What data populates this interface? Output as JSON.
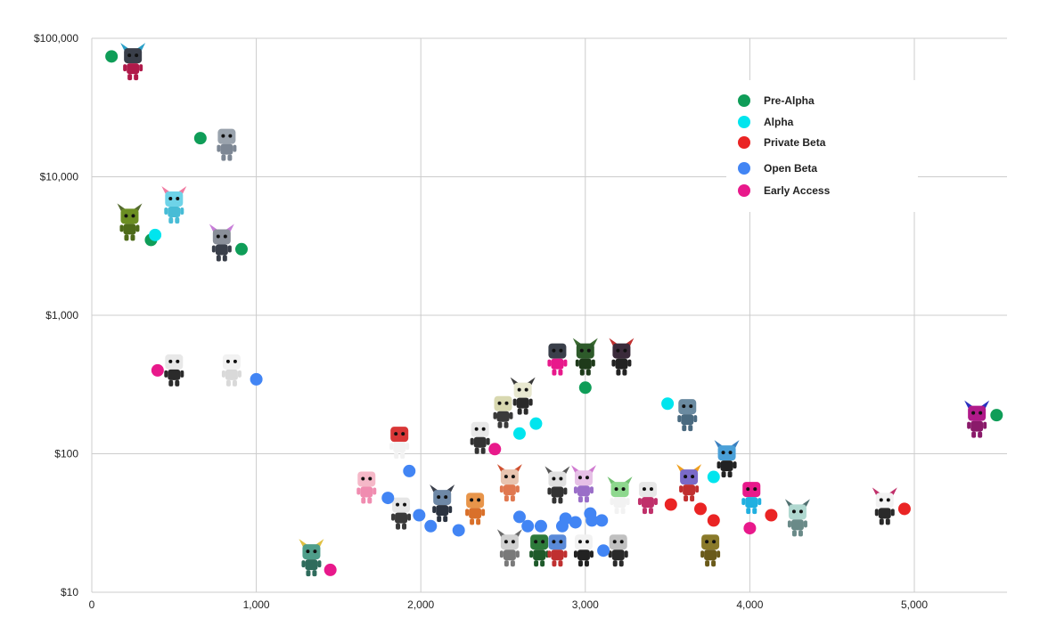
{
  "chart_data": {
    "type": "scatter",
    "title": "",
    "xlabel": "",
    "ylabel": "",
    "xlim": [
      0,
      5600
    ],
    "ylim": [
      10,
      100000
    ],
    "y_scale": "log",
    "grid": true,
    "legend_position": "right",
    "x_ticks": [
      {
        "value": 0,
        "label": "0"
      },
      {
        "value": 1000,
        "label": "1,000"
      },
      {
        "value": 2000,
        "label": "2,000"
      },
      {
        "value": 3000,
        "label": "3,000"
      },
      {
        "value": 4000,
        "label": "4,000"
      },
      {
        "value": 5000,
        "label": "5,000"
      }
    ],
    "y_ticks": [
      {
        "value": 10,
        "label": "$10"
      },
      {
        "value": 100,
        "label": "$100"
      },
      {
        "value": 1000,
        "label": "$1,000"
      },
      {
        "value": 10000,
        "label": "$10,000"
      },
      {
        "value": 100000,
        "label": "$100,000"
      }
    ],
    "series": [
      {
        "name": "Pre-Alpha",
        "color": "#0f9d58",
        "points": [
          {
            "x": 120,
            "y": 74000
          },
          {
            "x": 660,
            "y": 19000
          },
          {
            "x": 360,
            "y": 3500
          },
          {
            "x": 910,
            "y": 3000
          },
          {
            "x": 3000,
            "y": 300
          },
          {
            "x": 5500,
            "y": 190
          }
        ]
      },
      {
        "name": "Alpha",
        "color": "#00e5ee",
        "points": [
          {
            "x": 385,
            "y": 3800
          },
          {
            "x": 2600,
            "y": 140
          },
          {
            "x": 2700,
            "y": 165
          },
          {
            "x": 3500,
            "y": 230
          },
          {
            "x": 3780,
            "y": 68
          }
        ]
      },
      {
        "name": "Private Beta",
        "color": "#ea2424",
        "points": [
          {
            "x": 3520,
            "y": 43
          },
          {
            "x": 3700,
            "y": 40
          },
          {
            "x": 3780,
            "y": 33
          },
          {
            "x": 4130,
            "y": 36
          },
          {
            "x": 4940,
            "y": 40
          }
        ]
      },
      {
        "name": "Open Beta",
        "color": "#4285f4",
        "points": [
          {
            "x": 1000,
            "y": 345
          },
          {
            "x": 1800,
            "y": 48
          },
          {
            "x": 1930,
            "y": 75
          },
          {
            "x": 1990,
            "y": 36
          },
          {
            "x": 2060,
            "y": 30
          },
          {
            "x": 2230,
            "y": 28
          },
          {
            "x": 2600,
            "y": 35
          },
          {
            "x": 2650,
            "y": 30
          },
          {
            "x": 2730,
            "y": 30
          },
          {
            "x": 2860,
            "y": 30
          },
          {
            "x": 2880,
            "y": 34
          },
          {
            "x": 2940,
            "y": 32
          },
          {
            "x": 3030,
            "y": 37
          },
          {
            "x": 3040,
            "y": 33
          },
          {
            "x": 3100,
            "y": 33
          },
          {
            "x": 3110,
            "y": 20
          }
        ]
      },
      {
        "name": "Early Access",
        "color": "#e8198b",
        "points": [
          {
            "x": 400,
            "y": 400
          },
          {
            "x": 1450,
            "y": 14.5
          },
          {
            "x": 2450,
            "y": 108
          },
          {
            "x": 4000,
            "y": 29
          }
        ]
      }
    ],
    "figurines": [
      {
        "x": 250,
        "y": 65000,
        "head": "#3a3f4a",
        "body": "#b01a4a",
        "ears": "#2aa0c8"
      },
      {
        "x": 820,
        "y": 17000,
        "head": "#9aa3ad",
        "body": "#7d8794",
        "ears": ""
      },
      {
        "x": 230,
        "y": 4500,
        "head": "#6b8e23",
        "body": "#4e6b1a",
        "ears": "#556b2f"
      },
      {
        "x": 500,
        "y": 6000,
        "head": "#6ed3e8",
        "body": "#47bcd6",
        "ears": "#f07aa0"
      },
      {
        "x": 790,
        "y": 3200,
        "head": "#8a8f99",
        "body": "#3a3f4a",
        "ears": "#c77dd8"
      },
      {
        "x": 500,
        "y": 400,
        "head": "#e8e8e8",
        "body": "#2b2b2b",
        "ears": ""
      },
      {
        "x": 850,
        "y": 400,
        "head": "#f2f2f2",
        "body": "#d9d9d9",
        "ears": ""
      },
      {
        "x": 1335,
        "y": 17,
        "head": "#4f9e8a",
        "body": "#2f6b5c",
        "ears": "#e0c040"
      },
      {
        "x": 1670,
        "y": 57,
        "head": "#f5b8c8",
        "body": "#f08cb0",
        "ears": ""
      },
      {
        "x": 1880,
        "y": 37,
        "head": "#e6e6e6",
        "body": "#3a3a3a",
        "ears": ""
      },
      {
        "x": 1870,
        "y": 120,
        "head": "#d93636",
        "body": "#f2f2f2",
        "ears": ""
      },
      {
        "x": 2130,
        "y": 42,
        "head": "#6e88a6",
        "body": "#2b3340",
        "ears": "#3a3f4a"
      },
      {
        "x": 2330,
        "y": 40,
        "head": "#e8954a",
        "body": "#d9702a",
        "ears": ""
      },
      {
        "x": 2360,
        "y": 130,
        "head": "#e8e8e8",
        "body": "#333333",
        "ears": ""
      },
      {
        "x": 2500,
        "y": 200,
        "head": "#d8d8b0",
        "body": "#3a3a3a",
        "ears": ""
      },
      {
        "x": 2540,
        "y": 59,
        "head": "#e8c4b0",
        "body": "#e07850",
        "ears": "#d05030"
      },
      {
        "x": 2540,
        "y": 20,
        "head": "#d0d0d0",
        "body": "#7a7a7a",
        "ears": "#6a6a6a"
      },
      {
        "x": 2620,
        "y": 250,
        "head": "#e8e8d0",
        "body": "#2a2a2a",
        "ears": "#3a3a3a"
      },
      {
        "x": 2720,
        "y": 20,
        "head": "#2d7a3a",
        "body": "#1e5a2a",
        "ears": ""
      },
      {
        "x": 2830,
        "y": 20,
        "head": "#5a8ad8",
        "body": "#c03030",
        "ears": ""
      },
      {
        "x": 2830,
        "y": 57,
        "head": "#e0e0e0",
        "body": "#333333",
        "ears": "#555555"
      },
      {
        "x": 2830,
        "y": 480,
        "head": "#3a3f4a",
        "body": "#e8198b",
        "ears": ""
      },
      {
        "x": 2990,
        "y": 20,
        "head": "#f2f2f2",
        "body": "#222222",
        "ears": ""
      },
      {
        "x": 2990,
        "y": 58,
        "head": "#e6c0e6",
        "body": "#9a6ec8",
        "ears": "#d07ad0"
      },
      {
        "x": 3000,
        "y": 480,
        "head": "#2d5a2a",
        "body": "#1e3a1a",
        "ears": "#3a6a30"
      },
      {
        "x": 3200,
        "y": 20,
        "head": "#c0c0c0",
        "body": "#2a2a2a",
        "ears": ""
      },
      {
        "x": 3210,
        "y": 48,
        "head": "#8ed88e",
        "body": "#f2f2f2",
        "ears": "#70c070"
      },
      {
        "x": 3220,
        "y": 480,
        "head": "#3a2a3a",
        "body": "#222222",
        "ears": "#c03030"
      },
      {
        "x": 3380,
        "y": 48,
        "head": "#e8e8e8",
        "body": "#c0306a",
        "ears": ""
      },
      {
        "x": 3620,
        "y": 190,
        "head": "#6a8aa0",
        "body": "#4a6a80",
        "ears": ""
      },
      {
        "x": 3630,
        "y": 59,
        "head": "#7a6ac8",
        "body": "#c03030",
        "ears": "#f0a020"
      },
      {
        "x": 3760,
        "y": 20,
        "head": "#8a7a2a",
        "body": "#6a5a1a",
        "ears": ""
      },
      {
        "x": 3860,
        "y": 88,
        "head": "#4aa0d8",
        "body": "#222222",
        "ears": "#3a80c0"
      },
      {
        "x": 4010,
        "y": 48,
        "head": "#e8198b",
        "body": "#20b0e0",
        "ears": ""
      },
      {
        "x": 4290,
        "y": 33,
        "head": "#b0d8d0",
        "body": "#6a8a88",
        "ears": "#507070"
      },
      {
        "x": 4820,
        "y": 40,
        "head": "#f2f2f2",
        "body": "#2a2a2a",
        "ears": "#c0306a"
      },
      {
        "x": 5380,
        "y": 170,
        "head": "#b01a8a",
        "body": "#8a1a6a",
        "ears": "#2a30c0"
      }
    ]
  }
}
